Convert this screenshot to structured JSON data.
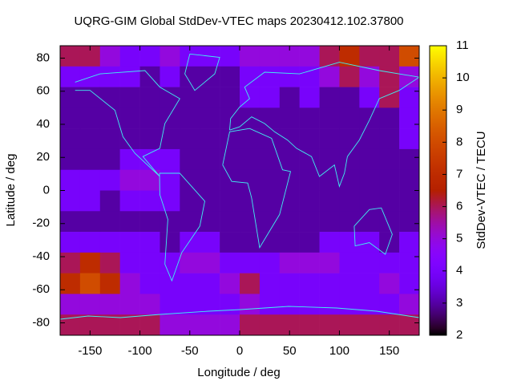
{
  "chart_data": {
    "type": "heatmap",
    "title": "UQRG-GIM Global StdDev-VTEC maps 20230412.102.37800",
    "x_label": "Longitude / deg",
    "y_label": "Latitude / deg",
    "colorbar_label": "StdDev-VTEC / TECU",
    "xlim": [
      -180,
      180
    ],
    "ylim": [
      -87.5,
      87.5
    ],
    "zlim": [
      2,
      11
    ],
    "xticks": [
      -150,
      -100,
      -50,
      0,
      50,
      100,
      150
    ],
    "yticks": [
      -80,
      -60,
      -40,
      -20,
      0,
      20,
      40,
      60,
      80
    ],
    "zticks": [
      2,
      3,
      4,
      5,
      6,
      7,
      8,
      9,
      10,
      11
    ],
    "palette": "gnuplot",
    "x": [
      -170,
      -150,
      -130,
      -110,
      -90,
      -70,
      -50,
      -30,
      -10,
      10,
      30,
      50,
      70,
      90,
      110,
      130,
      150,
      170
    ],
    "y": [
      81.25,
      68.75,
      56.25,
      43.75,
      31.25,
      18.75,
      6.25,
      -6.25,
      -18.75,
      -31.25,
      -43.75,
      -56.25,
      -68.75,
      -81.25
    ],
    "z": [
      [
        6,
        6,
        5,
        4,
        4,
        5,
        4,
        4,
        4,
        5,
        5,
        5,
        5,
        6,
        7,
        6,
        6,
        8
      ],
      [
        4,
        4,
        4,
        4,
        3,
        4,
        3,
        3,
        3,
        4,
        4,
        4,
        4,
        5,
        6,
        5,
        6,
        5
      ],
      [
        3,
        3,
        3,
        3,
        3,
        3,
        3,
        3,
        3,
        4,
        4,
        3,
        4,
        3,
        3,
        4,
        6,
        4
      ],
      [
        3,
        3,
        3,
        3,
        3,
        3,
        3,
        3,
        3,
        3,
        3,
        3,
        3,
        3,
        3,
        3,
        3,
        4
      ],
      [
        3,
        3,
        3,
        3,
        3,
        3,
        3,
        3,
        3,
        3,
        3,
        3,
        3,
        3,
        3,
        3,
        3,
        4
      ],
      [
        3,
        3,
        3,
        4,
        4,
        4,
        3,
        3,
        3,
        3,
        3,
        3,
        3,
        3,
        3,
        3,
        3,
        3
      ],
      [
        4,
        4,
        4,
        5,
        5,
        4,
        3,
        3,
        3,
        3,
        3,
        3,
        3,
        3,
        3,
        3,
        3,
        3
      ],
      [
        4,
        4,
        3,
        4,
        4,
        4,
        3,
        3,
        3,
        3,
        3,
        3,
        3,
        3,
        3,
        3,
        3,
        3
      ],
      [
        3,
        3,
        3,
        3,
        3,
        3,
        3,
        3,
        3,
        3,
        3,
        3,
        3,
        3,
        3,
        3,
        3,
        3
      ],
      [
        4,
        4,
        4,
        4,
        4,
        3,
        4,
        4,
        3,
        3,
        3,
        3,
        3,
        4,
        4,
        4,
        3,
        4
      ],
      [
        6,
        7,
        6,
        4,
        4,
        4,
        5,
        5,
        4,
        4,
        4,
        5,
        5,
        5,
        4,
        4,
        4,
        4
      ],
      [
        7,
        8,
        7,
        5,
        4,
        4,
        4,
        4,
        5,
        6,
        4,
        4,
        4,
        4,
        4,
        4,
        5,
        4
      ],
      [
        5,
        5,
        5,
        5,
        5,
        4,
        4,
        4,
        4,
        5,
        4,
        4,
        4,
        4,
        4,
        4,
        4,
        5
      ],
      [
        6,
        6,
        6,
        6,
        6,
        5,
        5,
        5,
        5,
        6,
        6,
        6,
        6,
        6,
        6,
        6,
        6,
        6
      ]
    ]
  }
}
